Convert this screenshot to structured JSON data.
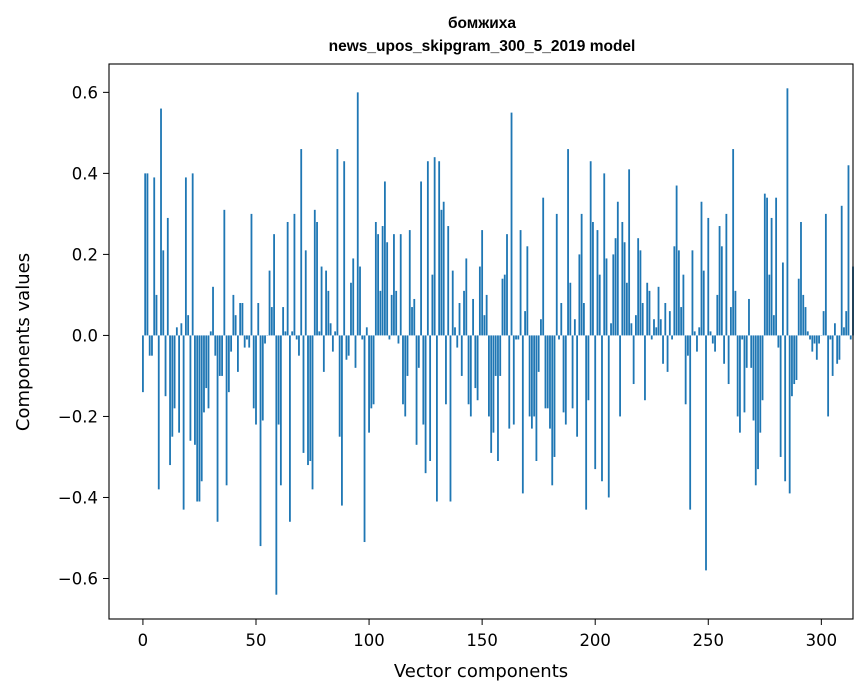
{
  "chart_data": {
    "type": "bar",
    "title": "бомжиха",
    "subtitle": "news_upos_skipgram_300_5_2019 model",
    "xlabel": "Vector components",
    "ylabel": "Components values",
    "xlim": [
      -15,
      314
    ],
    "ylim": [
      -0.7,
      0.67
    ],
    "xticks": [
      0,
      50,
      100,
      150,
      200,
      250,
      300
    ],
    "xtick_labels": [
      "0",
      "50",
      "100",
      "150",
      "200",
      "250",
      "300"
    ],
    "yticks": [
      -0.6,
      -0.4,
      -0.2,
      0.0,
      0.2,
      0.4,
      0.6
    ],
    "ytick_labels": [
      "−0.6",
      "−0.4",
      "−0.2",
      "0.0",
      "0.2",
      "0.4",
      "0.6"
    ],
    "grid": false,
    "bar_color": "#1f77b4",
    "values": [
      -0.14,
      0.4,
      0.4,
      -0.05,
      -0.05,
      0.39,
      0.1,
      -0.38,
      0.56,
      0.21,
      -0.15,
      0.29,
      -0.32,
      -0.25,
      -0.18,
      0.02,
      -0.24,
      0.03,
      -0.43,
      0.39,
      0.05,
      -0.26,
      0.4,
      -0.27,
      -0.41,
      -0.41,
      -0.36,
      -0.19,
      -0.13,
      -0.18,
      0.01,
      0.12,
      -0.05,
      -0.46,
      -0.1,
      -0.1,
      0.31,
      -0.37,
      -0.14,
      -0.04,
      0.1,
      0.05,
      -0.09,
      0.08,
      0.08,
      -0.03,
      -0.01,
      -0.03,
      0.3,
      -0.18,
      -0.22,
      0.08,
      -0.52,
      -0.21,
      -0.02,
      0.0,
      0.16,
      0.07,
      0.25,
      -0.64,
      -0.22,
      -0.37,
      0.07,
      0.01,
      0.28,
      -0.46,
      0.01,
      0.3,
      -0.01,
      -0.05,
      0.46,
      -0.29,
      0.21,
      -0.32,
      -0.31,
      -0.38,
      0.31,
      0.28,
      0.01,
      0.17,
      -0.09,
      0.16,
      0.11,
      0.03,
      -0.04,
      0.01,
      0.46,
      -0.25,
      -0.42,
      0.43,
      -0.06,
      -0.05,
      0.13,
      0.19,
      -0.08,
      0.6,
      0.17,
      -0.01,
      -0.51,
      0.02,
      -0.24,
      -0.18,
      -0.17,
      0.28,
      0.25,
      0.11,
      0.27,
      0.38,
      0.23,
      -0.01,
      0.1,
      0.25,
      0.11,
      -0.02,
      0.25,
      -0.17,
      -0.2,
      -0.1,
      0.26,
      0.07,
      0.09,
      -0.27,
      -0.08,
      0.38,
      -0.22,
      -0.34,
      0.43,
      -0.31,
      0.15,
      0.44,
      -0.41,
      0.43,
      0.31,
      0.33,
      -0.17,
      0.27,
      -0.41,
      0.16,
      0.02,
      -0.03,
      0.08,
      -0.1,
      0.11,
      0.19,
      -0.17,
      -0.2,
      0.09,
      -0.13,
      -0.16,
      0.17,
      0.26,
      0.05,
      0.1,
      -0.2,
      -0.29,
      -0.24,
      -0.1,
      -0.31,
      -0.1,
      0.14,
      0.15,
      0.25,
      -0.23,
      0.55,
      -0.22,
      -0.01,
      -0.01,
      0.26,
      -0.39,
      0.06,
      0.22,
      -0.2,
      -0.23,
      -0.2,
      -0.31,
      -0.09,
      0.04,
      0.34,
      -0.18,
      -0.18,
      -0.23,
      -0.37,
      -0.3,
      0.3,
      -0.01,
      0.08,
      -0.19,
      -0.22,
      0.46,
      0.13,
      -0.18,
      0.04,
      -0.25,
      0.2,
      0.3,
      0.08,
      -0.43,
      -0.16,
      0.43,
      0.28,
      -0.33,
      0.26,
      0.15,
      -0.36,
      0.4,
      0.19,
      -0.4,
      0.03,
      0.2,
      0.24,
      0.33,
      -0.2,
      0.28,
      0.23,
      0.13,
      0.41,
      0.03,
      -0.12,
      0.05,
      0.24,
      0.21,
      0.08,
      -0.16,
      0.13,
      0.11,
      -0.01,
      0.04,
      0.02,
      0.12,
      0.04,
      -0.07,
      0.08,
      -0.09,
      0.06,
      -0.01,
      0.22,
      0.37,
      0.21,
      0.07,
      0.15,
      -0.17,
      -0.05,
      -0.43,
      0.21,
      0.01,
      -0.04,
      0.02,
      0.33,
      0.16,
      -0.58,
      0.29,
      0.01,
      -0.02,
      -0.04,
      0.1,
      0.27,
      0.22,
      -0.07,
      0.3,
      -0.12,
      0.07,
      0.46,
      0.11,
      -0.2,
      -0.24,
      -0.01,
      -0.19,
      -0.08,
      0.09,
      -0.08,
      -0.21,
      -0.37,
      -0.33,
      -0.24,
      -0.16,
      0.35,
      0.34,
      0.15,
      0.29,
      0.05,
      0.34,
      -0.03,
      -0.3,
      0.18,
      -0.36,
      0.61,
      -0.39,
      -0.15,
      -0.12,
      -0.11,
      0.14,
      0.28,
      0.1,
      0.07,
      0.01,
      -0.01,
      -0.04,
      -0.02,
      -0.06,
      -0.02,
      0.0,
      0.06,
      0.3,
      -0.2,
      -0.01,
      -0.1,
      0.03,
      -0.07,
      -0.06,
      0.32,
      0.02,
      0.06,
      0.42,
      -0.01,
      0.17
    ]
  }
}
